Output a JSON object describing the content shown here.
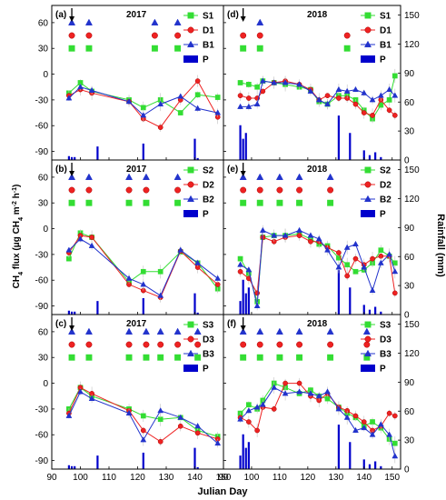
{
  "figure": {
    "y_left_label_parts": [
      "CH",
      "4",
      " flux (μg CH",
      "4",
      " m",
      "-2",
      " h",
      "-1",
      ")"
    ],
    "y_right_label": "Rainfall (mm)",
    "x_label": "Julian Day",
    "arrow_day": 97,
    "colors": {
      "S": "#33dd33",
      "D": "#ee2222",
      "B": "#2233cc",
      "P": "#0000cc"
    }
  },
  "chart_data": [
    {
      "type": "line",
      "panel": "(a)",
      "year": "2017",
      "xlim": [
        90,
        150
      ],
      "ylim": [
        -100,
        80
      ],
      "y2lim": [
        0,
        160
      ],
      "xticks": [
        90,
        100,
        110,
        120,
        130,
        140,
        150
      ],
      "yticks": [
        -90,
        -60,
        -30,
        0,
        30,
        60
      ],
      "series": [
        {
          "name": "S1",
          "key": "S",
          "x": [
            96,
            100,
            104,
            117,
            122,
            128,
            135,
            141,
            148
          ],
          "y": [
            -22,
            -10,
            -20,
            -30,
            -39,
            -30,
            -45,
            -24,
            -27
          ]
        },
        {
          "name": "D1",
          "key": "D",
          "x": [
            96,
            100,
            104,
            117,
            122,
            128,
            135,
            141,
            148
          ],
          "y": [
            -25,
            -18,
            -22,
            -32,
            -52,
            -62,
            -30,
            -8,
            -50
          ]
        },
        {
          "name": "B1",
          "key": "B",
          "x": [
            96,
            100,
            104,
            117,
            122,
            128,
            135,
            141,
            148
          ],
          "y": [
            -28,
            -15,
            -19,
            -32,
            -48,
            -35,
            -26,
            -40,
            -45
          ]
        }
      ],
      "markers": {
        "S": [
          97,
          103,
          126,
          134
        ],
        "D": [
          97,
          103,
          126,
          134
        ],
        "B": [
          97,
          103,
          126,
          134
        ]
      },
      "rain": {
        "x": [
          96,
          97,
          98,
          106,
          122,
          140,
          141
        ],
        "h": [
          4,
          3,
          3,
          14,
          17,
          22,
          2
        ]
      }
    },
    {
      "type": "line",
      "panel": "(d)",
      "year": "2018",
      "xlim": [
        90,
        153
      ],
      "ylim": [
        -100,
        80
      ],
      "y2lim": [
        0,
        160
      ],
      "xticks": [
        90,
        100,
        110,
        120,
        130,
        140,
        150
      ],
      "yticks": [
        -90,
        -60,
        -30,
        0,
        30,
        60
      ],
      "series": [
        {
          "name": "S1",
          "key": "S",
          "x": [
            96,
            99,
            102,
            104,
            108,
            112,
            117,
            121,
            124,
            127,
            131,
            134,
            137,
            140,
            143,
            146,
            149,
            151
          ],
          "y": [
            -10,
            -12,
            -15,
            -8,
            -10,
            -12,
            -15,
            -18,
            -32,
            -35,
            -25,
            -25,
            -30,
            -42,
            -52,
            -36,
            -30,
            -2
          ]
        },
        {
          "name": "D1",
          "key": "D",
          "x": [
            96,
            99,
            102,
            104,
            108,
            112,
            117,
            121,
            124,
            127,
            131,
            134,
            137,
            140,
            143,
            146,
            149,
            151
          ],
          "y": [
            -25,
            -28,
            -28,
            -20,
            -10,
            -8,
            -12,
            -18,
            -30,
            -25,
            -28,
            -28,
            -35,
            -45,
            -48,
            -30,
            -42,
            -48
          ]
        },
        {
          "name": "B1",
          "key": "B",
          "x": [
            96,
            99,
            102,
            104,
            108,
            112,
            117,
            121,
            124,
            127,
            131,
            134,
            137,
            140,
            143,
            146,
            149,
            151
          ],
          "y": [
            -38,
            -38,
            -35,
            -8,
            -10,
            -10,
            -12,
            -20,
            -30,
            -35,
            -18,
            -20,
            -18,
            -22,
            -30,
            -25,
            -18,
            -25
          ]
        }
      ],
      "markers": {
        "S": [
          97,
          103,
          134
        ],
        "D": [
          97,
          103,
          134
        ],
        "B": [
          103
        ]
      },
      "rain": {
        "x": [
          96,
          97,
          98,
          131,
          135,
          140,
          142,
          144,
          146
        ],
        "h": [
          36,
          22,
          28,
          46,
          28,
          10,
          5,
          8,
          3
        ]
      }
    },
    {
      "type": "line",
      "panel": "(b)",
      "year": "2017",
      "xlim": [
        90,
        150
      ],
      "ylim": [
        -100,
        80
      ],
      "y2lim": [
        0,
        160
      ],
      "xticks": [
        90,
        100,
        110,
        120,
        130,
        140,
        150
      ],
      "yticks": [
        -90,
        -60,
        -30,
        0,
        30,
        60
      ],
      "series": [
        {
          "name": "S2",
          "key": "S",
          "x": [
            96,
            100,
            104,
            117,
            122,
            128,
            135,
            141,
            148
          ],
          "y": [
            -35,
            -5,
            -10,
            -62,
            -50,
            -50,
            -27,
            -40,
            -70
          ]
        },
        {
          "name": "D2",
          "key": "D",
          "x": [
            96,
            100,
            104,
            117,
            122,
            128,
            135,
            141,
            148
          ],
          "y": [
            -28,
            -8,
            -10,
            -65,
            -72,
            -80,
            -26,
            -45,
            -65
          ]
        },
        {
          "name": "B2",
          "key": "B",
          "x": [
            96,
            100,
            104,
            117,
            122,
            128,
            135,
            141,
            148
          ],
          "y": [
            -25,
            -12,
            -20,
            -58,
            -65,
            -78,
            -25,
            -40,
            -58
          ]
        }
      ],
      "markers": {
        "S": [
          97,
          103,
          117,
          123,
          134
        ],
        "D": [
          97,
          103,
          117,
          123,
          134
        ],
        "B": [
          97,
          103,
          117,
          123,
          134
        ]
      },
      "rain": {
        "x": [
          96,
          97,
          98,
          106,
          122,
          140,
          141
        ],
        "h": [
          4,
          3,
          3,
          14,
          17,
          22,
          2
        ]
      }
    },
    {
      "type": "line",
      "panel": "(e)",
      "year": "2018",
      "xlim": [
        90,
        153
      ],
      "ylim": [
        -100,
        80
      ],
      "y2lim": [
        0,
        160
      ],
      "xticks": [
        90,
        100,
        110,
        120,
        130,
        140,
        150
      ],
      "yticks": [
        -90,
        -60,
        -30,
        0,
        30,
        60
      ],
      "series": [
        {
          "name": "S2",
          "key": "S",
          "x": [
            96,
            99,
            102,
            104,
            108,
            112,
            117,
            121,
            124,
            127,
            131,
            134,
            137,
            140,
            143,
            146,
            149,
            151
          ],
          "y": [
            -35,
            -52,
            -85,
            -10,
            -8,
            -8,
            -6,
            -12,
            -18,
            -20,
            -34,
            -42,
            -50,
            -48,
            -40,
            -25,
            -32,
            -40
          ]
        },
        {
          "name": "D2",
          "key": "D",
          "x": [
            96,
            99,
            102,
            104,
            108,
            112,
            117,
            121,
            124,
            127,
            131,
            134,
            137,
            140,
            143,
            146,
            149,
            151
          ],
          "y": [
            -50,
            -58,
            -75,
            -10,
            -15,
            -10,
            -8,
            -15,
            -15,
            -22,
            -28,
            -55,
            -35,
            -42,
            -35,
            -32,
            -32,
            -75
          ]
        },
        {
          "name": "B2",
          "key": "B",
          "x": [
            96,
            99,
            102,
            104,
            108,
            112,
            117,
            121,
            124,
            127,
            131,
            134,
            137,
            140,
            143,
            146,
            149,
            151
          ],
          "y": [
            -42,
            -48,
            -90,
            -2,
            -8,
            -8,
            -2,
            -8,
            -12,
            -25,
            -45,
            -22,
            -18,
            -45,
            -72,
            -40,
            -30,
            -50
          ]
        }
      ],
      "markers": {
        "S": [
          97,
          103,
          110,
          117,
          128
        ],
        "D": [
          97,
          103,
          110,
          117,
          128
        ],
        "B": [
          97,
          103,
          110,
          117,
          128
        ]
      },
      "rain": {
        "x": [
          96,
          97,
          98,
          99,
          131,
          135,
          140,
          142,
          144,
          146
        ],
        "h": [
          14,
          36,
          22,
          28,
          46,
          28,
          10,
          5,
          8,
          3
        ]
      }
    },
    {
      "type": "line",
      "panel": "(c)",
      "year": "2017",
      "xlim": [
        90,
        150
      ],
      "ylim": [
        -100,
        80
      ],
      "y2lim": [
        0,
        160
      ],
      "xticks": [
        90,
        100,
        110,
        120,
        130,
        140,
        150
      ],
      "yticks": [
        -90,
        -60,
        -30,
        0,
        30,
        60
      ],
      "series": [
        {
          "name": "S3",
          "key": "S",
          "x": [
            96,
            100,
            104,
            117,
            122,
            128,
            135,
            141,
            148
          ],
          "y": [
            -30,
            -5,
            -15,
            -30,
            -38,
            -42,
            -40,
            -55,
            -62
          ]
        },
        {
          "name": "D3",
          "key": "D",
          "x": [
            96,
            100,
            104,
            117,
            122,
            128,
            135,
            141,
            148
          ],
          "y": [
            -35,
            -5,
            -12,
            -32,
            -55,
            -68,
            -50,
            -58,
            -65
          ]
        },
        {
          "name": "B3",
          "key": "B",
          "x": [
            96,
            100,
            104,
            117,
            122,
            128,
            135,
            141,
            148
          ],
          "y": [
            -38,
            -10,
            -18,
            -35,
            -66,
            -32,
            -40,
            -50,
            -70
          ]
        }
      ],
      "markers": {
        "S": [
          97,
          103,
          117,
          123,
          128,
          134,
          141
        ],
        "D": [
          97,
          103,
          117,
          123,
          128,
          134,
          141
        ],
        "B": [
          97,
          103,
          117,
          123,
          128,
          134,
          141
        ]
      },
      "rain": {
        "x": [
          96,
          97,
          98,
          106,
          122,
          140,
          141
        ],
        "h": [
          4,
          3,
          3,
          14,
          17,
          22,
          2
        ]
      }
    },
    {
      "type": "line",
      "panel": "(f)",
      "year": "2018",
      "xlim": [
        90,
        153
      ],
      "ylim": [
        -100,
        80
      ],
      "y2lim": [
        0,
        160
      ],
      "xticks": [
        90,
        100,
        110,
        120,
        130,
        140,
        150
      ],
      "yticks": [
        -90,
        -60,
        -30,
        0,
        30,
        60
      ],
      "series": [
        {
          "name": "S3",
          "key": "S",
          "x": [
            96,
            99,
            102,
            104,
            108,
            112,
            117,
            121,
            124,
            127,
            131,
            134,
            137,
            140,
            143,
            146,
            149,
            151
          ],
          "y": [
            -35,
            -25,
            -30,
            -20,
            0,
            -5,
            -12,
            -8,
            -15,
            -18,
            -28,
            -35,
            -40,
            -50,
            -45,
            -52,
            -65,
            -70
          ]
        },
        {
          "name": "D3",
          "key": "D",
          "x": [
            96,
            99,
            102,
            104,
            108,
            112,
            117,
            121,
            124,
            127,
            131,
            134,
            137,
            140,
            143,
            146,
            149,
            151
          ],
          "y": [
            -40,
            -45,
            -55,
            -28,
            -30,
            0,
            0,
            -15,
            -20,
            -12,
            -28,
            -32,
            -38,
            -45,
            -55,
            -50,
            -35,
            -38
          ]
        },
        {
          "name": "B3",
          "key": "B",
          "x": [
            96,
            99,
            102,
            104,
            108,
            112,
            117,
            121,
            124,
            127,
            131,
            134,
            137,
            140,
            143,
            146,
            149,
            151
          ],
          "y": [
            -42,
            -32,
            -28,
            -25,
            -5,
            -12,
            -10,
            -12,
            -15,
            -10,
            -30,
            -40,
            -55,
            -52,
            -60,
            -48,
            -60,
            -85
          ]
        }
      ],
      "markers": {
        "S": [
          97,
          103,
          110,
          117,
          128,
          141
        ],
        "D": [
          97,
          103,
          110,
          117,
          128,
          141
        ],
        "B": [
          97,
          103,
          110,
          117,
          128,
          141
        ]
      },
      "rain": {
        "x": [
          96,
          97,
          98,
          99,
          131,
          135,
          140,
          142,
          144,
          146
        ],
        "h": [
          14,
          36,
          22,
          28,
          46,
          28,
          10,
          5,
          8,
          3
        ]
      }
    }
  ]
}
